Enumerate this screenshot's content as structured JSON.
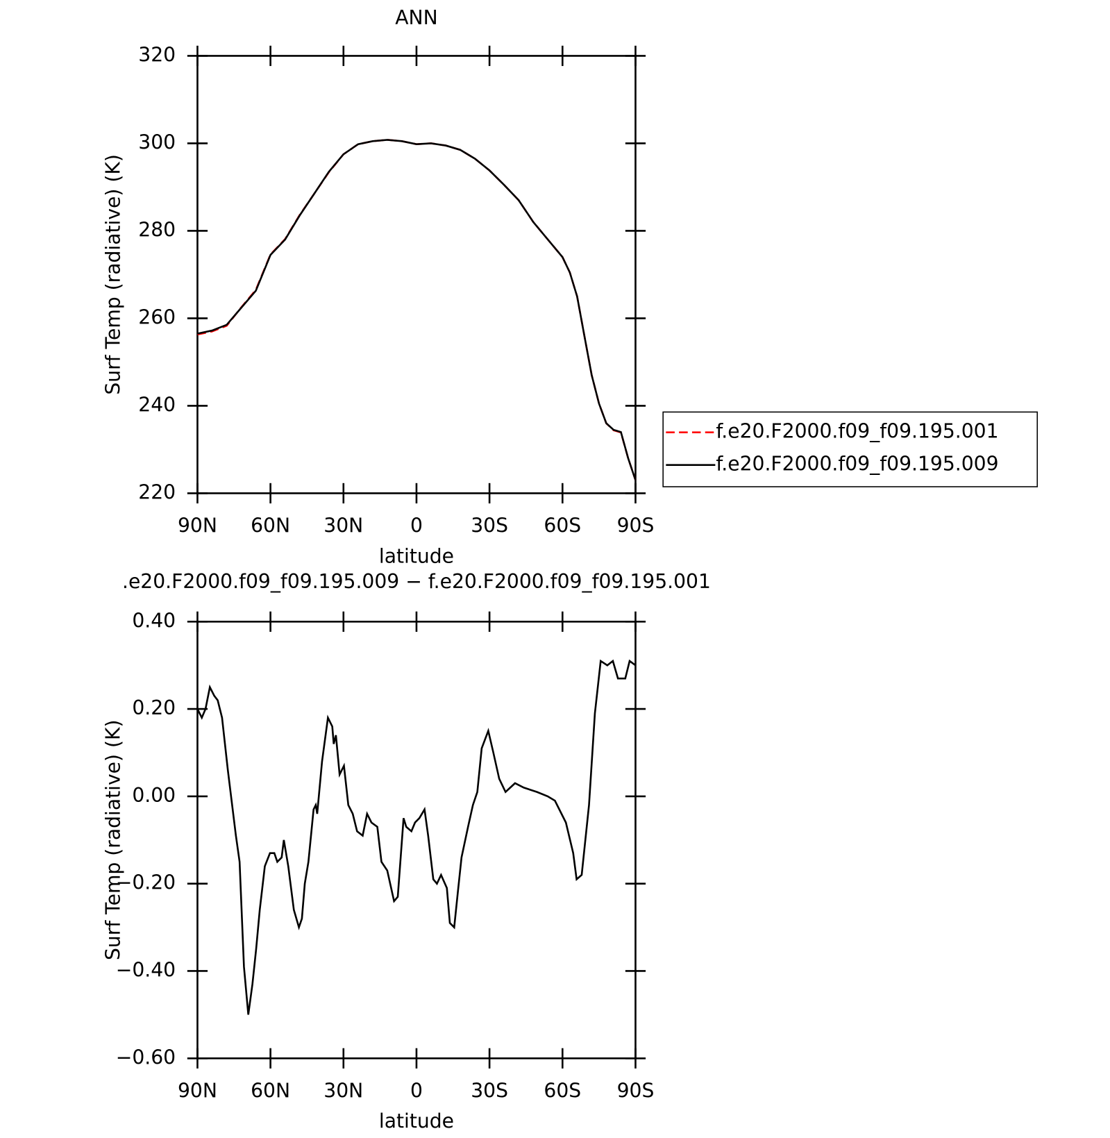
{
  "chart_data": [
    {
      "type": "line",
      "title": "ANN",
      "xlabel": "latitude",
      "ylabel": "Surf Temp (radiative) (K)",
      "xlim": [
        90,
        -90
      ],
      "xticks": [
        {
          "value": 90,
          "label": "90N"
        },
        {
          "value": 60,
          "label": "60N"
        },
        {
          "value": 30,
          "label": "30N"
        },
        0,
        {
          "value": -30,
          "label": "30S"
        },
        {
          "value": -60,
          "label": "60S"
        },
        {
          "value": -90,
          "label": "90S"
        }
      ],
      "ylim": [
        220,
        320
      ],
      "yticks": [
        220,
        240,
        260,
        280,
        300,
        320
      ],
      "legend": "outside-right",
      "x": [
        90,
        84,
        78,
        72,
        66,
        60,
        54,
        48,
        42,
        36,
        30,
        24,
        18,
        12,
        6,
        0,
        -6,
        -12,
        -18,
        -24,
        -30,
        -36,
        -42,
        -48,
        -54,
        -60,
        -63,
        -66,
        -69,
        -72,
        -75,
        -78,
        -81,
        -84,
        -87,
        -90
      ],
      "series": [
        {
          "name": "f.e20.F2000.f09_f09.195.001",
          "color": "#ff0000",
          "linestyle": "dashed",
          "values": [
            256.3,
            257.0,
            258.3,
            262.5,
            266.5,
            274.6,
            278.1,
            283.6,
            288.5,
            293.4,
            297.5,
            299.8,
            300.5,
            300.8,
            300.5,
            299.8,
            300.0,
            299.5,
            298.5,
            296.5,
            293.8,
            290.5,
            287.0,
            282.0,
            278.0,
            274.0,
            270.5,
            265.0,
            256.0,
            247.0,
            240.5,
            236.0,
            234.4,
            233.9,
            228.0,
            223.0
          ]
        },
        {
          "name": "f.e20.F2000.f09_f09.195.009",
          "color": "#000000",
          "linestyle": "solid",
          "values": [
            256.5,
            257.2,
            258.5,
            262.4,
            266.3,
            274.5,
            278.0,
            283.5,
            288.5,
            293.5,
            297.5,
            299.8,
            300.5,
            300.8,
            300.5,
            299.8,
            300.0,
            299.5,
            298.5,
            296.5,
            293.8,
            290.5,
            287.0,
            282.0,
            278.0,
            274.0,
            270.5,
            265.0,
            256.0,
            247.0,
            240.5,
            236.0,
            234.5,
            234.0,
            228.0,
            223.0
          ]
        }
      ]
    },
    {
      "type": "line",
      "title": ".e20.F2000.f09_f09.195.009 − f.e20.F2000.f09_f09.195.001",
      "xlabel": "latitude",
      "ylabel": "Surf Temp (radiative) (K)",
      "xlim": [
        90,
        -90
      ],
      "xticks": [
        {
          "value": 90,
          "label": "90N"
        },
        {
          "value": 60,
          "label": "60N"
        },
        {
          "value": 30,
          "label": "30N"
        },
        0,
        {
          "value": -30,
          "label": "30S"
        },
        {
          "value": -60,
          "label": "60S"
        },
        {
          "value": -90,
          "label": "90S"
        }
      ],
      "ylim": [
        -0.6,
        0.4
      ],
      "yticks": [
        {
          "value": -0.6,
          "label": "−0.60"
        },
        {
          "value": -0.4,
          "label": "−0.40"
        },
        {
          "value": -0.2,
          "label": "−0.20"
        },
        {
          "value": 0,
          "label": "0.00"
        },
        {
          "value": 0.2,
          "label": "0.20"
        },
        {
          "value": 0.4,
          "label": "0.40"
        }
      ],
      "x": [
        90,
        88.2,
        86.7,
        84.9,
        83.1,
        81.7,
        79.9,
        77.5,
        74.2,
        72.7,
        70.9,
        69.1,
        67.4,
        65.9,
        64.4,
        62.3,
        60.2,
        58.4,
        57.2,
        55.4,
        54.5,
        52.7,
        50.4,
        48.3,
        47.1,
        45.9,
        44.4,
        42.3,
        41.4,
        40.8,
        38.8,
        36.4,
        34.6,
        34.0,
        33.1,
        31.6,
        29.8,
        28.0,
        26.2,
        24.4,
        22.1,
        20.3,
        18.5,
        16.1,
        14.4,
        12.0,
        9.2,
        7.7,
        5.3,
        4.2,
        2.1,
        0.6,
        -1.2,
        -3.3,
        -4.8,
        -6.9,
        -8.4,
        -10.1,
        -12.5,
        -13.7,
        -15.5,
        -17.0,
        -18.5,
        -21.2,
        -23.2,
        -25.0,
        -26.8,
        -29.5,
        -31.6,
        -34.0,
        -36.6,
        -40.5,
        -44.1,
        -49.5,
        -53.9,
        -56.9,
        -61.4,
        -64.4,
        -65.8,
        -67.9,
        -70.9,
        -73.3,
        -75.7,
        -78.4,
        -80.7,
        -82.8,
        -84.6,
        -85.8,
        -87.6,
        -90
      ],
      "color": "#000000",
      "values": [
        0.2,
        0.18,
        0.2,
        0.25,
        0.23,
        0.22,
        0.18,
        0.06,
        -0.09,
        -0.15,
        -0.39,
        -0.5,
        -0.43,
        -0.35,
        -0.26,
        -0.16,
        -0.13,
        -0.13,
        -0.15,
        -0.14,
        -0.1,
        -0.16,
        -0.26,
        -0.3,
        -0.28,
        -0.2,
        -0.15,
        -0.03,
        -0.02,
        -0.04,
        0.08,
        0.18,
        0.16,
        0.12,
        0.14,
        0.05,
        0.07,
        -0.02,
        -0.04,
        -0.08,
        -0.09,
        -0.04,
        -0.06,
        -0.07,
        -0.15,
        -0.17,
        -0.24,
        -0.23,
        -0.05,
        -0.07,
        -0.08,
        -0.06,
        -0.05,
        -0.03,
        -0.09,
        -0.19,
        -0.2,
        -0.18,
        -0.21,
        -0.29,
        -0.3,
        -0.22,
        -0.14,
        -0.07,
        -0.02,
        0.01,
        0.11,
        0.15,
        0.1,
        0.04,
        0.01,
        0.03,
        0.02,
        0.01,
        0.0,
        -0.01,
        -0.06,
        -0.13,
        -0.19,
        -0.18,
        -0.02,
        0.19,
        0.31,
        0.3,
        0.31,
        0.27,
        0.27,
        0.27,
        0.31,
        0.3
      ]
    }
  ]
}
